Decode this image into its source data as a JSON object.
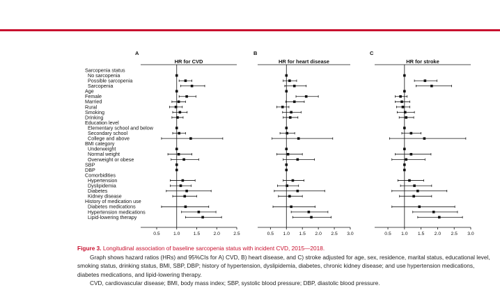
{
  "chart_data": [
    {
      "type": "forest",
      "panel": "A",
      "title": "HR for CVD",
      "xlim": [
        0.1,
        2.5
      ],
      "ticks": [
        "0.5",
        "1.0",
        "1.5",
        "2.0",
        "2.5"
      ],
      "reference_line": 1.0,
      "points": [
        {
          "row": "No sarcopenia",
          "hr": 1.0,
          "lo": 1.0,
          "hi": 1.0
        },
        {
          "row": "Possible sarcopenia",
          "hr": 1.22,
          "lo": 1.06,
          "hi": 1.38
        },
        {
          "row": "Sarcopenia",
          "hr": 1.38,
          "lo": 1.1,
          "hi": 1.7
        },
        {
          "row": "Age",
          "hr": 1.0,
          "lo": 1.0,
          "hi": 1.0
        },
        {
          "row": "Female",
          "hr": 1.25,
          "lo": 1.06,
          "hi": 1.48
        },
        {
          "row": "Married",
          "hr": 1.05,
          "lo": 0.88,
          "hi": 1.22
        },
        {
          "row": "Rural",
          "hr": 0.98,
          "lo": 0.82,
          "hi": 1.14
        },
        {
          "row": "Smoking",
          "hr": 1.08,
          "lo": 0.9,
          "hi": 1.26
        },
        {
          "row": "Drinking",
          "hr": 1.02,
          "lo": 0.88,
          "hi": 1.16
        },
        {
          "row": "Elementary school and below",
          "hr": 1.0,
          "lo": 1.0,
          "hi": 1.0
        },
        {
          "row": "Secondary school",
          "hr": 1.06,
          "lo": 0.9,
          "hi": 1.22
        },
        {
          "row": "College and above",
          "hr": 1.35,
          "lo": 0.62,
          "hi": 2.15
        },
        {
          "row": "Underweight",
          "hr": 1.0,
          "lo": 1.0,
          "hi": 1.0
        },
        {
          "row": "Normal weight",
          "hr": 1.05,
          "lo": 0.78,
          "hi": 1.38
        },
        {
          "row": "Overweight or obese",
          "hr": 1.18,
          "lo": 0.86,
          "hi": 1.55
        },
        {
          "row": "SBP",
          "hr": 1.0,
          "lo": 1.0,
          "hi": 1.0
        },
        {
          "row": "DBP",
          "hr": 1.0,
          "lo": 1.0,
          "hi": 1.0
        },
        {
          "row": "Hypertension",
          "hr": 1.15,
          "lo": 0.84,
          "hi": 1.46
        },
        {
          "row": "Dyslipidemia",
          "hr": 1.1,
          "lo": 0.84,
          "hi": 1.36
        },
        {
          "row": "Diabetes",
          "hr": 1.25,
          "lo": 0.74,
          "hi": 1.86
        },
        {
          "row": "Kidney disease",
          "hr": 1.2,
          "lo": 0.9,
          "hi": 1.5
        },
        {
          "row": "Diabetes medications",
          "hr": 1.22,
          "lo": 0.62,
          "hi": 1.8
        },
        {
          "row": "Hypertension medications",
          "hr": 1.55,
          "lo": 1.12,
          "hi": 1.98
        },
        {
          "row": "Lipid-lowering therapy",
          "hr": 1.65,
          "lo": 1.22,
          "hi": 2.12
        }
      ]
    },
    {
      "type": "forest",
      "panel": "B",
      "title": "HR for heart disease",
      "xlim": [
        0.1,
        3.0
      ],
      "ticks": [
        "0.5",
        "1.0",
        "1.5",
        "2.0",
        "2.5",
        "3.0"
      ],
      "reference_line": 1.0,
      "points": [
        {
          "row": "No sarcopenia",
          "hr": 1.0,
          "lo": 1.0,
          "hi": 1.0
        },
        {
          "row": "Possible sarcopenia",
          "hr": 1.1,
          "lo": 0.9,
          "hi": 1.32
        },
        {
          "row": "Sarcopenia",
          "hr": 1.25,
          "lo": 0.95,
          "hi": 1.62
        },
        {
          "row": "Age",
          "hr": 1.0,
          "lo": 1.0,
          "hi": 1.0
        },
        {
          "row": "Female",
          "hr": 1.62,
          "lo": 1.3,
          "hi": 2.0
        },
        {
          "row": "Married",
          "hr": 1.25,
          "lo": 0.98,
          "hi": 1.56
        },
        {
          "row": "Rural",
          "hr": 0.88,
          "lo": 0.7,
          "hi": 1.08
        },
        {
          "row": "Smoking",
          "hr": 1.15,
          "lo": 0.88,
          "hi": 1.46
        },
        {
          "row": "Drinking",
          "hr": 1.12,
          "lo": 0.9,
          "hi": 1.36
        },
        {
          "row": "Elementary school and below",
          "hr": 1.0,
          "lo": 1.0,
          "hi": 1.0
        },
        {
          "row": "Secondary school",
          "hr": 1.02,
          "lo": 0.8,
          "hi": 1.26
        },
        {
          "row": "College and above",
          "hr": 1.38,
          "lo": 0.55,
          "hi": 2.45
        },
        {
          "row": "Underweight",
          "hr": 1.0,
          "lo": 1.0,
          "hi": 1.0
        },
        {
          "row": "Normal weight",
          "hr": 1.05,
          "lo": 0.7,
          "hi": 1.5
        },
        {
          "row": "Overweight or obese",
          "hr": 1.35,
          "lo": 0.9,
          "hi": 1.88
        },
        {
          "row": "SBP",
          "hr": 1.0,
          "lo": 1.0,
          "hi": 1.0
        },
        {
          "row": "DBP",
          "hr": 1.0,
          "lo": 1.0,
          "hi": 1.0
        },
        {
          "row": "Hypertension",
          "hr": 1.2,
          "lo": 0.9,
          "hi": 1.55
        },
        {
          "row": "Dyslipidemia",
          "hr": 1.02,
          "lo": 0.72,
          "hi": 1.38
        },
        {
          "row": "Diabetes",
          "hr": 1.35,
          "lo": 0.62,
          "hi": 2.2
        },
        {
          "row": "Kidney disease",
          "hr": 1.1,
          "lo": 0.75,
          "hi": 1.5
        },
        {
          "row": "Diabetes medications",
          "hr": 1.15,
          "lo": 0.58,
          "hi": 1.9
        },
        {
          "row": "Hypertension medications",
          "hr": 1.7,
          "lo": 1.15,
          "hi": 2.3
        },
        {
          "row": "Lipid-lowering therapy",
          "hr": 1.78,
          "lo": 1.2,
          "hi": 2.4
        }
      ]
    },
    {
      "type": "forest",
      "panel": "C",
      "title": "HR for stroke",
      "xlim": [
        0.1,
        3.0
      ],
      "ticks": [
        "0.5",
        "1.0",
        "1.5",
        "2.0",
        "2.5",
        "3.0"
      ],
      "reference_line": 1.0,
      "points": [
        {
          "row": "No sarcopenia",
          "hr": 1.0,
          "lo": 1.0,
          "hi": 1.0
        },
        {
          "row": "Possible sarcopenia",
          "hr": 1.62,
          "lo": 1.3,
          "hi": 1.98
        },
        {
          "row": "Sarcopenia",
          "hr": 1.82,
          "lo": 1.35,
          "hi": 2.42
        },
        {
          "row": "Age",
          "hr": 1.0,
          "lo": 1.0,
          "hi": 1.0
        },
        {
          "row": "Female",
          "hr": 0.88,
          "lo": 0.72,
          "hi": 1.08
        },
        {
          "row": "Married",
          "hr": 0.92,
          "lo": 0.72,
          "hi": 1.16
        },
        {
          "row": "Rural",
          "hr": 0.95,
          "lo": 0.76,
          "hi": 1.16
        },
        {
          "row": "Smoking",
          "hr": 1.02,
          "lo": 0.78,
          "hi": 1.3
        },
        {
          "row": "Drinking",
          "hr": 1.05,
          "lo": 0.84,
          "hi": 1.28
        },
        {
          "row": "Elementary school and below",
          "hr": 1.0,
          "lo": 1.0,
          "hi": 1.0
        },
        {
          "row": "Secondary school",
          "hr": 1.2,
          "lo": 0.92,
          "hi": 1.5
        },
        {
          "row": "College and above",
          "hr": 1.6,
          "lo": 0.55,
          "hi": 2.85
        },
        {
          "row": "Underweight",
          "hr": 1.0,
          "lo": 1.0,
          "hi": 1.0
        },
        {
          "row": "Normal weight",
          "hr": 1.2,
          "lo": 0.72,
          "hi": 1.8
        },
        {
          "row": "Overweight or obese",
          "hr": 1.05,
          "lo": 0.62,
          "hi": 1.62
        },
        {
          "row": "SBP",
          "hr": 1.0,
          "lo": 1.0,
          "hi": 1.0
        },
        {
          "row": "DBP",
          "hr": 1.0,
          "lo": 1.0,
          "hi": 1.0
        },
        {
          "row": "Hypertension",
          "hr": 1.15,
          "lo": 0.8,
          "hi": 1.58
        },
        {
          "row": "Dyslipidemia",
          "hr": 1.3,
          "lo": 0.88,
          "hi": 1.82
        },
        {
          "row": "Diabetes",
          "hr": 1.4,
          "lo": 0.62,
          "hi": 2.28
        },
        {
          "row": "Kidney disease",
          "hr": 1.28,
          "lo": 0.85,
          "hi": 1.82
        },
        {
          "row": "Diabetes medications",
          "hr": 1.45,
          "lo": 0.62,
          "hi": 2.52
        },
        {
          "row": "Hypertension medications",
          "hr": 1.88,
          "lo": 1.25,
          "hi": 2.6
        },
        {
          "row": "Lipid-lowering therapy",
          "hr": 2.05,
          "lo": 1.4,
          "hi": 2.75
        }
      ]
    }
  ],
  "rows": [
    {
      "label": "Sarcopenia status",
      "indent": false
    },
    {
      "label": "No sarcopenia",
      "indent": true
    },
    {
      "label": "Possible sarcopenia",
      "indent": true
    },
    {
      "label": "Sarcopenia",
      "indent": true
    },
    {
      "label": "Age",
      "indent": false
    },
    {
      "label": "Female",
      "indent": false
    },
    {
      "label": "Married",
      "indent": false
    },
    {
      "label": "Rural",
      "indent": false
    },
    {
      "label": "Smoking",
      "indent": false
    },
    {
      "label": "Drinking",
      "indent": false
    },
    {
      "label": "Education level",
      "indent": false
    },
    {
      "label": "Elementary school and below",
      "indent": true
    },
    {
      "label": "Secondary school",
      "indent": true
    },
    {
      "label": "College and above",
      "indent": true
    },
    {
      "label": "BMI category",
      "indent": false
    },
    {
      "label": "Underweight",
      "indent": true
    },
    {
      "label": "Normal weight",
      "indent": true
    },
    {
      "label": "Overweight or obese",
      "indent": true
    },
    {
      "label": "SBP",
      "indent": false
    },
    {
      "label": "DBP",
      "indent": false
    },
    {
      "label": "Comorbidities",
      "indent": false
    },
    {
      "label": "Hypertension",
      "indent": true
    },
    {
      "label": "Dyslipidemia",
      "indent": true
    },
    {
      "label": "Diabetes",
      "indent": true
    },
    {
      "label": "Kidney disease",
      "indent": true
    },
    {
      "label": "History of medication use",
      "indent": false
    },
    {
      "label": "Diabetes medications",
      "indent": true
    },
    {
      "label": "Hypertension medications",
      "indent": true
    },
    {
      "label": "Lipid-lowering therapy",
      "indent": true
    }
  ],
  "caption": {
    "figure_label": "Figure 3.",
    "title": "Longitudinal association of baseline sarcopenia status with incident CVD, 2015—2018.",
    "para1": "Graph shows hazard ratios (HRs) and 95%CIs for A) CVD, B) heart disease, and C) stroke adjusted for age, sex, residence, marital status, educational level, smoking status, drinking status, BMI, SBP, DBP; history of hypertension, dyslipidemia, diabetes, chronic kidney disease; and use hypertension medications, diabetes medications, and lipid-lowering therapy.",
    "para2": "CVD, cardiovascular disease; BMI, body mass index; SBP, systolic blood pressure; DBP, diastolic blood pressure."
  },
  "colors": {
    "accent": "#c8102e",
    "ink": "#111111"
  }
}
